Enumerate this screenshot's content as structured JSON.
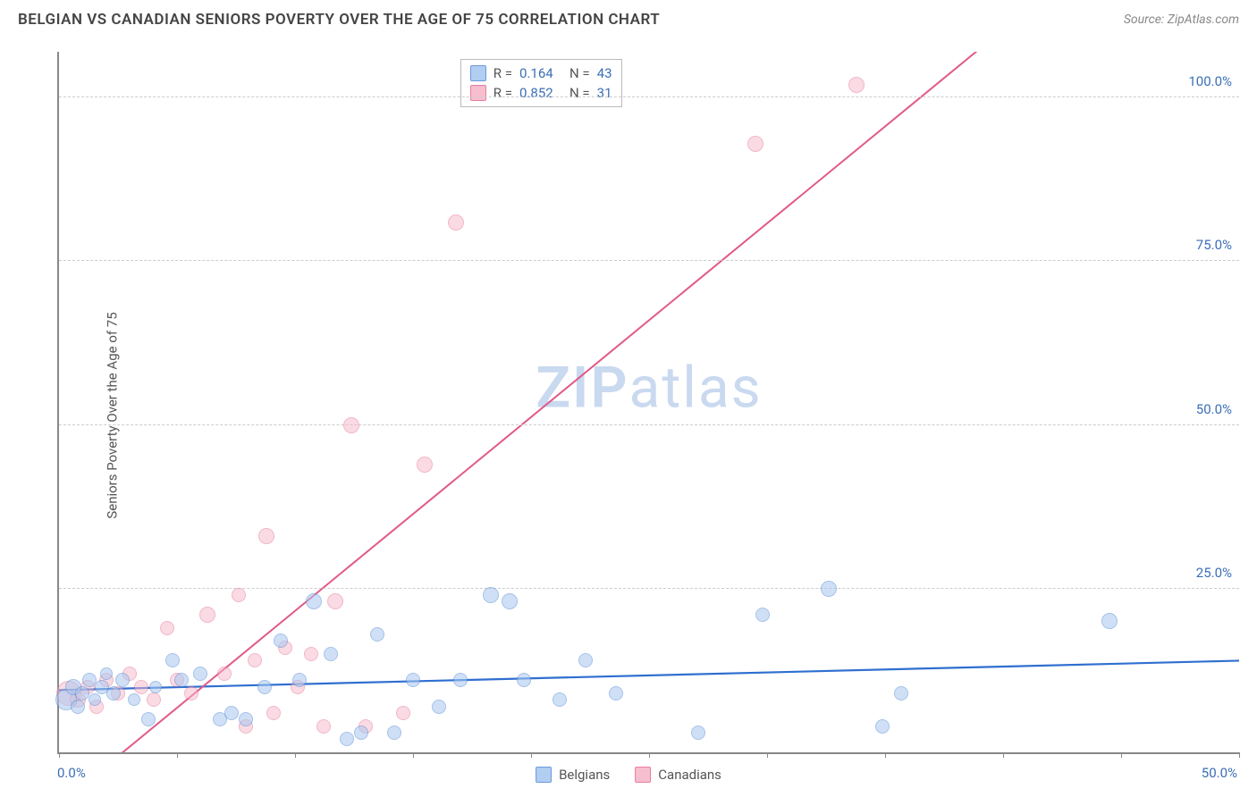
{
  "header": {
    "title": "BELGIAN VS CANADIAN SENIORS POVERTY OVER THE AGE OF 75 CORRELATION CHART",
    "source": "Source: ZipAtlas.com"
  },
  "chart": {
    "type": "scatter",
    "ylabel": "Seniors Poverty Over the Age of 75",
    "background_color": "#ffffff",
    "grid_color": "#cccccc",
    "axis_color": "#888888",
    "xlim": [
      0,
      50
    ],
    "ylim": [
      0,
      107
    ],
    "xticks": [
      0,
      5,
      10,
      15,
      20,
      25,
      30,
      35,
      40,
      45,
      50
    ],
    "xtick_labels": {
      "0": "0.0%",
      "50": "50.0%"
    },
    "xtick_label_color": "#3b6fb6",
    "yticks": [
      25,
      50,
      75,
      100
    ],
    "ytick_labels": {
      "25": "25.0%",
      "50": "50.0%",
      "75": "75.0%",
      "100": "100.0%"
    },
    "ytick_label_color": "#3b6fb6",
    "watermark": {
      "text_a": "ZIP",
      "text_b": "atlas",
      "color": "#c9d9ef"
    },
    "series": [
      {
        "name": "Belgians",
        "fill": "#a9c8f0",
        "stroke": "#5d8fd6",
        "fill_opacity": 0.55,
        "marker_radius": 8,
        "trend": {
          "color": "#2f6fd0",
          "width": 2.2,
          "y_at_x0": 9.5,
          "y_at_xmax": 14.0
        },
        "stats": {
          "R": "0.164",
          "N": "43"
        },
        "points": [
          {
            "x": 0.3,
            "y": 8,
            "r": 12
          },
          {
            "x": 0.6,
            "y": 10,
            "r": 9
          },
          {
            "x": 0.8,
            "y": 7,
            "r": 8
          },
          {
            "x": 1.0,
            "y": 9,
            "r": 8
          },
          {
            "x": 1.3,
            "y": 11,
            "r": 8
          },
          {
            "x": 1.5,
            "y": 8,
            "r": 7
          },
          {
            "x": 1.8,
            "y": 10,
            "r": 8
          },
          {
            "x": 2.0,
            "y": 12,
            "r": 7
          },
          {
            "x": 2.3,
            "y": 9,
            "r": 8
          },
          {
            "x": 2.7,
            "y": 11,
            "r": 8
          },
          {
            "x": 3.2,
            "y": 8,
            "r": 7
          },
          {
            "x": 3.8,
            "y": 5,
            "r": 8
          },
          {
            "x": 4.1,
            "y": 10,
            "r": 7
          },
          {
            "x": 4.8,
            "y": 14,
            "r": 8
          },
          {
            "x": 5.2,
            "y": 11,
            "r": 8
          },
          {
            "x": 6.0,
            "y": 12,
            "r": 8
          },
          {
            "x": 6.8,
            "y": 5,
            "r": 8
          },
          {
            "x": 7.3,
            "y": 6,
            "r": 8
          },
          {
            "x": 7.9,
            "y": 5,
            "r": 8
          },
          {
            "x": 8.7,
            "y": 10,
            "r": 8
          },
          {
            "x": 9.4,
            "y": 17,
            "r": 8
          },
          {
            "x": 10.2,
            "y": 11,
            "r": 8
          },
          {
            "x": 10.8,
            "y": 23,
            "r": 9
          },
          {
            "x": 11.5,
            "y": 15,
            "r": 8
          },
          {
            "x": 12.2,
            "y": 2,
            "r": 8
          },
          {
            "x": 12.8,
            "y": 3,
            "r": 8
          },
          {
            "x": 13.5,
            "y": 18,
            "r": 8
          },
          {
            "x": 14.2,
            "y": 3,
            "r": 8
          },
          {
            "x": 15.0,
            "y": 11,
            "r": 8
          },
          {
            "x": 16.1,
            "y": 7,
            "r": 8
          },
          {
            "x": 17.0,
            "y": 11,
            "r": 8
          },
          {
            "x": 18.3,
            "y": 24,
            "r": 9
          },
          {
            "x": 19.1,
            "y": 23,
            "r": 9
          },
          {
            "x": 19.7,
            "y": 11,
            "r": 8
          },
          {
            "x": 21.2,
            "y": 8,
            "r": 8
          },
          {
            "x": 22.3,
            "y": 14,
            "r": 8
          },
          {
            "x": 23.6,
            "y": 9,
            "r": 8
          },
          {
            "x": 27.1,
            "y": 3,
            "r": 8
          },
          {
            "x": 29.8,
            "y": 21,
            "r": 8
          },
          {
            "x": 32.6,
            "y": 25,
            "r": 9
          },
          {
            "x": 34.9,
            "y": 4,
            "r": 8
          },
          {
            "x": 35.7,
            "y": 9,
            "r": 8
          },
          {
            "x": 44.5,
            "y": 20,
            "r": 9
          }
        ]
      },
      {
        "name": "Canadians",
        "fill": "#f6b8c9",
        "stroke": "#e76f94",
        "fill_opacity": 0.5,
        "marker_radius": 8,
        "trend": {
          "color": "#e05a87",
          "width": 2.0,
          "y_at_x0": -8,
          "y_at_xmax": 140
        },
        "stats": {
          "R": "0.852",
          "N": "31"
        },
        "points": [
          {
            "x": 0.4,
            "y": 9,
            "r": 14
          },
          {
            "x": 0.8,
            "y": 8,
            "r": 9
          },
          {
            "x": 1.2,
            "y": 10,
            "r": 8
          },
          {
            "x": 1.6,
            "y": 7,
            "r": 8
          },
          {
            "x": 2.0,
            "y": 11,
            "r": 8
          },
          {
            "x": 2.5,
            "y": 9,
            "r": 8
          },
          {
            "x": 3.0,
            "y": 12,
            "r": 8
          },
          {
            "x": 3.5,
            "y": 10,
            "r": 8
          },
          {
            "x": 4.0,
            "y": 8,
            "r": 8
          },
          {
            "x": 4.6,
            "y": 19,
            "r": 8
          },
          {
            "x": 5.0,
            "y": 11,
            "r": 8
          },
          {
            "x": 5.6,
            "y": 9,
            "r": 8
          },
          {
            "x": 6.3,
            "y": 21,
            "r": 9
          },
          {
            "x": 7.0,
            "y": 12,
            "r": 8
          },
          {
            "x": 7.6,
            "y": 24,
            "r": 8
          },
          {
            "x": 7.9,
            "y": 4,
            "r": 8
          },
          {
            "x": 8.3,
            "y": 14,
            "r": 8
          },
          {
            "x": 8.8,
            "y": 33,
            "r": 9
          },
          {
            "x": 9.1,
            "y": 6,
            "r": 8
          },
          {
            "x": 9.6,
            "y": 16,
            "r": 8
          },
          {
            "x": 10.1,
            "y": 10,
            "r": 8
          },
          {
            "x": 10.7,
            "y": 15,
            "r": 8
          },
          {
            "x": 11.2,
            "y": 4,
            "r": 8
          },
          {
            "x": 11.7,
            "y": 23,
            "r": 9
          },
          {
            "x": 12.4,
            "y": 50,
            "r": 9
          },
          {
            "x": 13.0,
            "y": 4,
            "r": 8
          },
          {
            "x": 14.6,
            "y": 6,
            "r": 8
          },
          {
            "x": 15.5,
            "y": 44,
            "r": 9
          },
          {
            "x": 16.8,
            "y": 81,
            "r": 9
          },
          {
            "x": 29.5,
            "y": 93,
            "r": 9
          },
          {
            "x": 33.8,
            "y": 102,
            "r": 9
          }
        ]
      }
    ],
    "stats_box": {
      "left_pct": 34,
      "top_pct": 1
    },
    "legend": {
      "items": [
        {
          "label": "Belgians",
          "fill": "#a9c8f0",
          "stroke": "#5d8fd6"
        },
        {
          "label": "Canadians",
          "fill": "#f6b8c9",
          "stroke": "#e76f94"
        }
      ]
    }
  }
}
